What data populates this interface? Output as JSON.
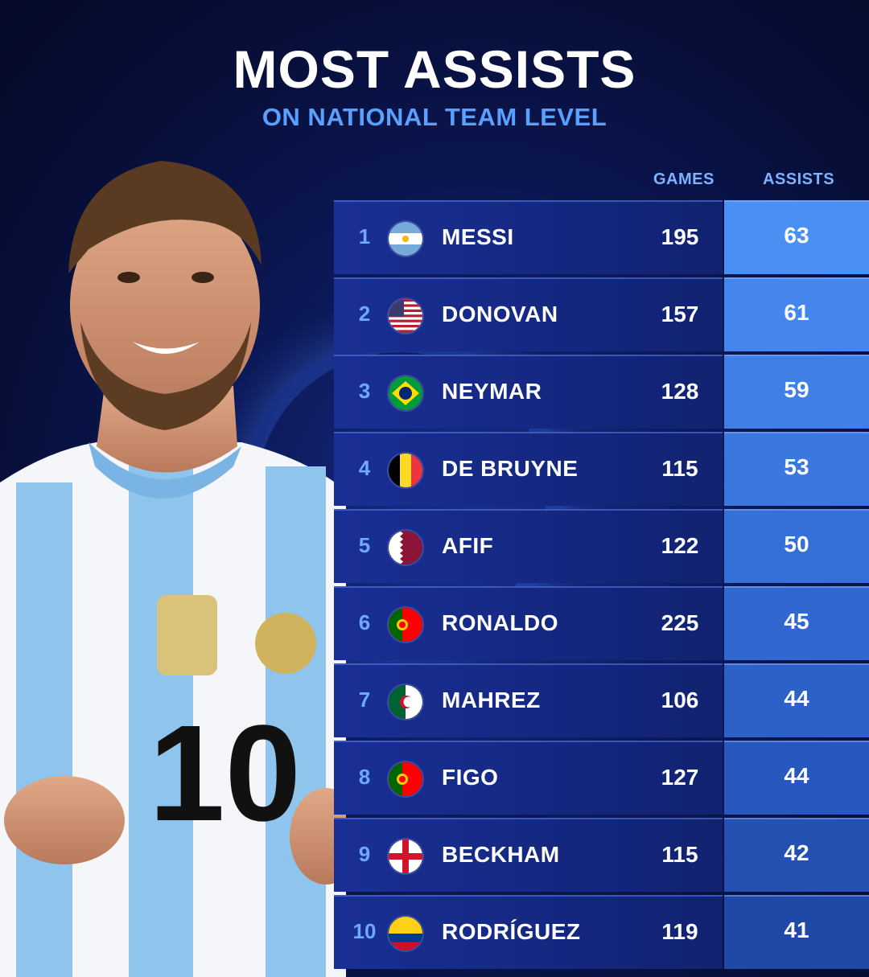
{
  "header": {
    "title": "MOST ASSISTS",
    "subtitle": "ON NATIONAL TEAM LEVEL"
  },
  "columns": {
    "games": "GAMES",
    "assists": "ASSISTS"
  },
  "rows": [
    {
      "rank": "1",
      "name": "MESSI",
      "games": "195",
      "assists": "63",
      "flag": "argentina-flag-icon",
      "shade": "#4a8ff2"
    },
    {
      "rank": "2",
      "name": "DONOVAN",
      "games": "157",
      "assists": "61",
      "flag": "usa-flag-icon",
      "shade": "#4486ec"
    },
    {
      "rank": "3",
      "name": "NEYMAR",
      "games": "128",
      "assists": "59",
      "flag": "brazil-flag-icon",
      "shade": "#3f7fe6"
    },
    {
      "rank": "4",
      "name": "DE BRUYNE",
      "games": "115",
      "assists": "53",
      "flag": "belgium-flag-icon",
      "shade": "#3a77df"
    },
    {
      "rank": "5",
      "name": "AFIF",
      "games": "122",
      "assists": "50",
      "flag": "qatar-flag-icon",
      "shade": "#3570d8"
    },
    {
      "rank": "6",
      "name": "RONALDO",
      "games": "225",
      "assists": "45",
      "flag": "portugal-flag-icon",
      "shade": "#3068d0"
    },
    {
      "rank": "7",
      "name": "MAHREZ",
      "games": "106",
      "assists": "44",
      "flag": "algeria-flag-icon",
      "shade": "#2c61c8"
    },
    {
      "rank": "8",
      "name": "FIGO",
      "games": "127",
      "assists": "44",
      "flag": "portugal-flag-icon",
      "shade": "#2858bd"
    },
    {
      "rank": "9",
      "name": "BECKHAM",
      "games": "115",
      "assists": "42",
      "flag": "england-flag-icon",
      "shade": "#2450b2"
    },
    {
      "rank": "10",
      "name": "RODRÍGUEZ",
      "games": "119",
      "assists": "41",
      "flag": "colombia-flag-icon",
      "shade": "#2048a6"
    }
  ]
}
